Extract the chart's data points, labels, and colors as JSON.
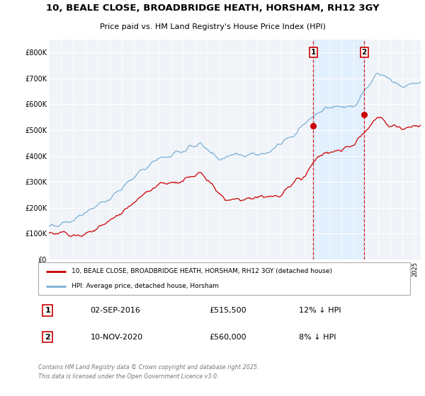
{
  "title": "10, BEALE CLOSE, BROADBRIDGE HEATH, HORSHAM, RH12 3GY",
  "subtitle": "Price paid vs. HM Land Registry's House Price Index (HPI)",
  "legend_house": "10, BEALE CLOSE, BROADBRIDGE HEATH, HORSHAM, RH12 3GY (detached house)",
  "legend_hpi": "HPI: Average price, detached house, Horsham",
  "annotation1_label": "1",
  "annotation1_date": "02-SEP-2016",
  "annotation1_price": "£515,500",
  "annotation1_hpi": "12% ↓ HPI",
  "annotation2_label": "2",
  "annotation2_date": "10-NOV-2020",
  "annotation2_price": "£560,000",
  "annotation2_hpi": "8% ↓ HPI",
  "footer": "Contains HM Land Registry data © Crown copyright and database right 2025.\nThis data is licensed under the Open Government Licence v3.0.",
  "house_color": "#cc0000",
  "hpi_color": "#7bafd4",
  "shade_color": "#ddeeff",
  "background_color": "#ffffff",
  "plot_bg_color": "#f0f4f8",
  "ylim": [
    0,
    850000
  ],
  "yticks": [
    0,
    100000,
    200000,
    300000,
    400000,
    500000,
    600000,
    700000,
    800000
  ],
  "ytick_labels": [
    "£0",
    "£100K",
    "£200K",
    "£300K",
    "£400K",
    "£500K",
    "£600K",
    "£700K",
    "£800K"
  ],
  "sale1_x": 2016.67,
  "sale1_y": 515500,
  "sale2_x": 2020.86,
  "sale2_y": 560000,
  "vline1_x": 2016.67,
  "vline2_x": 2020.86,
  "xmin": 1995,
  "xmax": 2025.5
}
